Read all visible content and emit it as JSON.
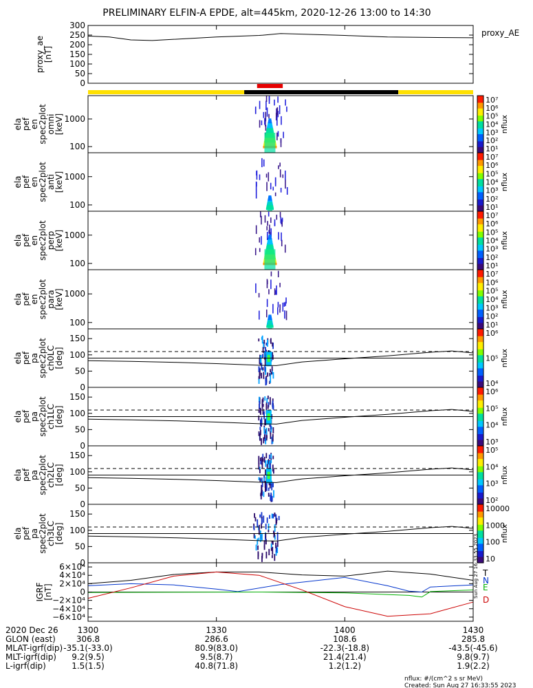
{
  "title": "PRELIMINARY ELFIN-A EPDE, alt=445km, 2020-12-26 13:00 to 14:30",
  "colors": {
    "yellow": "#FFE000",
    "black": "#000000",
    "red": "#E60000",
    "trace_T": "#000000",
    "trace_N": "#0033CC",
    "trace_E": "#00B000",
    "trace_D": "#CC0000"
  },
  "time": {
    "ticks": [
      {
        "t": 0,
        "label": "1300"
      },
      {
        "t": 30,
        "label": "1330"
      },
      {
        "t": 60,
        "label": "1400"
      },
      {
        "t": 90,
        "label": "1430"
      }
    ],
    "range": [
      0,
      90
    ]
  },
  "bars": {
    "state_segments": [
      {
        "from": 0,
        "to": 36.5,
        "color": "yellow"
      },
      {
        "from": 36.5,
        "to": 72.5,
        "color": "black"
      },
      {
        "from": 72.5,
        "to": 90,
        "color": "yellow"
      }
    ],
    "science_segment": {
      "from": 39.5,
      "to": 45.5,
      "color": "red"
    }
  },
  "panels": [
    {
      "id": "proxy_ae",
      "ylabel": [
        "proxy_ae",
        "[nT]"
      ],
      "right_label": "proxy_AE",
      "type": "line",
      "yrange": [
        0,
        300
      ],
      "yticks": [
        "0",
        "50",
        "100",
        "150",
        "200",
        "250",
        "300"
      ],
      "yvalues": [
        0,
        50,
        100,
        150,
        200,
        250,
        300
      ],
      "series": [
        {
          "x": [
            0,
            5,
            10,
            15,
            20,
            30,
            40,
            45,
            50,
            60,
            70,
            80,
            90
          ],
          "y": [
            245,
            240,
            225,
            222,
            228,
            240,
            248,
            258,
            255,
            248,
            240,
            238,
            236
          ]
        }
      ]
    },
    {
      "id": "en_omni",
      "ylabel": [
        "ela",
        "pef",
        "en",
        "spec2plot",
        "omni",
        "[keV]"
      ],
      "type": "spec",
      "log": true,
      "yrange": [
        60,
        7000
      ],
      "yticks": [
        "100",
        "1000"
      ],
      "yvalues": [
        100,
        1000
      ],
      "cbar": {
        "labels": [
          "10¹",
          "10²",
          "10³",
          "10⁴",
          "10⁵",
          "10⁶",
          "10⁷"
        ],
        "title": "nflux"
      }
    },
    {
      "id": "en_anti",
      "ylabel": [
        "ela",
        "pef",
        "en",
        "spec2plot",
        "anti",
        "[keV]"
      ],
      "type": "spec",
      "log": true,
      "yrange": [
        60,
        7000
      ],
      "yticks": [
        "100",
        "1000"
      ],
      "yvalues": [
        100,
        1000
      ],
      "cbar": {
        "labels": [
          "10¹",
          "10²",
          "10³",
          "10⁴",
          "10⁵",
          "10⁶",
          "10⁷"
        ],
        "title": "nflux"
      }
    },
    {
      "id": "en_perp",
      "ylabel": [
        "ela",
        "pef",
        "en",
        "spec2plot",
        "perp",
        "[keV]"
      ],
      "type": "spec",
      "log": true,
      "yrange": [
        60,
        7000
      ],
      "yticks": [
        "100",
        "1000"
      ],
      "yvalues": [
        100,
        1000
      ],
      "cbar": {
        "labels": [
          "10¹",
          "10²",
          "10³",
          "10⁴",
          "10⁵",
          "10⁶",
          "10⁷"
        ],
        "title": "nflux"
      }
    },
    {
      "id": "en_para",
      "ylabel": [
        "ela",
        "pef",
        "en",
        "spec2plot",
        "para",
        "[keV]"
      ],
      "type": "spec",
      "log": true,
      "yrange": [
        60,
        7000
      ],
      "yticks": [
        "100",
        "1000"
      ],
      "yvalues": [
        100,
        1000
      ],
      "cbar": {
        "labels": [
          "10¹",
          "10²",
          "10³",
          "10⁴",
          "10⁵",
          "10⁶",
          "10⁷"
        ],
        "title": "nflux"
      }
    },
    {
      "id": "pa_ch0",
      "ylabel": [
        "ela",
        "pef",
        "pa",
        "spec2plot",
        "ch0LC",
        "[deg]"
      ],
      "type": "pa",
      "yrange": [
        0,
        180
      ],
      "yticks": [
        "0",
        "50",
        "100",
        "150"
      ],
      "yvalues": [
        0,
        50,
        100,
        150
      ],
      "cbar": {
        "labels": [
          "10⁴",
          "10⁵",
          "10⁶"
        ],
        "title": "nflux"
      }
    },
    {
      "id": "pa_ch1",
      "ylabel": [
        "ela",
        "pef",
        "pa",
        "spec2plot",
        "ch1LC",
        "[deg]"
      ],
      "type": "pa",
      "yrange": [
        0,
        180
      ],
      "yticks": [
        "0",
        "50",
        "100",
        "150"
      ],
      "yvalues": [
        0,
        50,
        100,
        150
      ],
      "cbar": {
        "labels": [
          "10³",
          "10⁴",
          "10⁵",
          "10⁶"
        ],
        "title": "nflux"
      }
    },
    {
      "id": "pa_ch2",
      "ylabel": [
        "ela",
        "pef",
        "pa",
        "spec2plot",
        "ch2LC",
        "[deg]"
      ],
      "type": "pa",
      "yrange": [
        0,
        180
      ],
      "yticks": [
        "0",
        "50",
        "100",
        "150"
      ],
      "yvalues": [
        0,
        50,
        100,
        150
      ],
      "cbar": {
        "labels": [
          "10²",
          "10³",
          "10⁴",
          "10⁵"
        ],
        "title": "nflux"
      }
    },
    {
      "id": "pa_ch3",
      "ylabel": [
        "ela",
        "pef",
        "pa",
        "spec2plot",
        "ch3LC",
        "[deg]"
      ],
      "type": "pa",
      "yrange": [
        0,
        180
      ],
      "yticks": [
        "0",
        "50",
        "100",
        "150"
      ],
      "yvalues": [
        0,
        50,
        100,
        150
      ],
      "cbar": {
        "labels": [
          "10",
          "100",
          "1000",
          "10000"
        ],
        "title": "nflux"
      }
    },
    {
      "id": "igrf",
      "ylabel": [
        "IGRF",
        "[nT]"
      ],
      "type": "line",
      "yrange": [
        -70000,
        70000
      ],
      "yticks": [
        "6×10⁴",
        "4×10⁴",
        "2×10⁴",
        "0",
        "−2×10⁴",
        "−4×10⁴",
        "−6×10⁴"
      ],
      "yvalues": [
        60000,
        40000,
        20000,
        0,
        -20000,
        -40000,
        -60000
      ],
      "legend": [
        "T",
        "N",
        "E",
        "D"
      ],
      "side_note": "Sun Aug 27 16:33:55 2023"
    }
  ],
  "pa_lines": {
    "dashed_loss_cone": 110,
    "solid_curve": {
      "x": [
        0,
        10,
        20,
        30,
        40,
        44,
        50,
        60,
        70,
        80,
        85,
        90
      ],
      "y": [
        82,
        80,
        77,
        73,
        68,
        67,
        78,
        88,
        97,
        108,
        112,
        106
      ]
    },
    "ref_90": 90
  },
  "igrf_series": {
    "T": {
      "x": [
        0,
        10,
        20,
        30,
        40,
        50,
        60,
        70,
        80,
        90
      ],
      "y": [
        20000,
        28000,
        42000,
        48000,
        48000,
        41000,
        38000,
        50000,
        43000,
        28000
      ]
    },
    "N": {
      "x": [
        0,
        10,
        20,
        30,
        35,
        45,
        60,
        70,
        75,
        78,
        80,
        90
      ],
      "y": [
        15000,
        20000,
        17000,
        7000,
        1000,
        18000,
        35000,
        15000,
        2000,
        0,
        12000,
        17000
      ]
    },
    "E": {
      "x": [
        0,
        20,
        40,
        60,
        75,
        78,
        80,
        85,
        90
      ],
      "y": [
        -1000,
        -500,
        0,
        -2000,
        -8000,
        -12000,
        1000,
        3000,
        5000
      ]
    },
    "D": {
      "x": [
        0,
        10,
        20,
        30,
        40,
        50,
        60,
        70,
        80,
        90
      ],
      "y": [
        -15000,
        10000,
        38000,
        48000,
        40000,
        5000,
        -35000,
        -58000,
        -52000,
        -24000
      ]
    }
  },
  "ephemeris": {
    "date": "2020 Dec 26",
    "rows": [
      {
        "label": "GLON (east)",
        "values": [
          "306.8",
          "286.6",
          "108.6",
          "285.8"
        ]
      },
      {
        "label": "MLAT-igrf(dip)",
        "values": [
          "-35.1(-33.0)",
          "80.9(83.0)",
          "-22.3(-18.8)",
          "-43.5(-45.6)"
        ]
      },
      {
        "label": "MLT-igrf(dip)",
        "values": [
          "9.2(9.5)",
          "9.5(8.7)",
          "21.4(21.4)",
          "9.8(9.7)"
        ]
      },
      {
        "label": "L-igrf(dip)",
        "values": [
          "1.5(1.5)",
          "40.8(71.8)",
          "1.2(1.2)",
          "1.9(2.2)"
        ]
      }
    ]
  },
  "footer": {
    "units": "nflux: #/(cm^2 s sr MeV)",
    "created": "Created: Sun Aug 27 16:33:55 2023"
  }
}
